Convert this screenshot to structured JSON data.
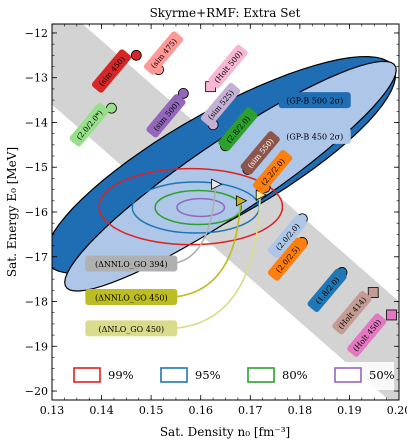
{
  "chart_data": {
    "type": "scatter",
    "title": "Skyrme+RMF: Extra Set",
    "xlabel": "Sat. Density n₀ [fm⁻³]",
    "ylabel": "Sat. Energy E₀ [MeV]",
    "xlim": [
      0.13,
      0.2
    ],
    "ylim": [
      -20.2,
      -11.8
    ],
    "xticks": [
      "0.13",
      "0.14",
      "0.15",
      "0.16",
      "0.17",
      "0.18",
      "0.19",
      "0.20"
    ],
    "yticks": [
      "−12",
      "−13",
      "−14",
      "−15",
      "−16",
      "−17",
      "−18",
      "−19",
      "−20"
    ],
    "grid": false,
    "band_color": "#d3d3d3",
    "band": {
      "x": [
        0.13,
        0.2
      ],
      "lower": [
        -13.6,
        -20.4
      ],
      "upper": [
        -11.2,
        -18.0
      ]
    },
    "regions": [
      {
        "name": "GP-B 500 2σ",
        "label": "(GP-B 500 2σ)",
        "cx": 0.164,
        "cy": -14.95,
        "rx_dir": [
          0.0345,
          2.25
        ],
        "ry_dir": [
          -0.0075,
          0.9
        ],
        "fill": "#1f6eb4",
        "label_x": 0.183,
        "label_y": -13.5
      },
      {
        "name": "GP-B 450 2σ",
        "label": "(GP-B 450 2σ)",
        "cx": 0.166,
        "cy": -15.2,
        "rx_dir": [
          0.033,
          2.5
        ],
        "ry_dir": [
          -0.0054,
          0.58
        ],
        "fill": "#aec7e8",
        "label_x": 0.183,
        "label_y": -14.3
      }
    ],
    "ellipses": [
      {
        "level": "99%",
        "cx": 0.158,
        "cy": -15.88,
        "rx": 0.0185,
        "ry": 0.85,
        "color": "#e02020"
      },
      {
        "level": "95%",
        "cx": 0.159,
        "cy": -15.9,
        "rx": 0.0128,
        "ry": 0.57,
        "color": "#1f77b4"
      },
      {
        "level": "80%",
        "cx": 0.1595,
        "cy": -15.9,
        "rx": 0.0087,
        "ry": 0.38,
        "color": "#2ca02c"
      },
      {
        "level": "50%",
        "cx": 0.16,
        "cy": -15.9,
        "rx": 0.0048,
        "ry": 0.2,
        "color": "#9467bd"
      }
    ],
    "triangles": [
      {
        "label": "(ΔNNLO_GO 394)",
        "x": 0.163,
        "y": -15.38,
        "fill": "#e8e8e8",
        "label_color": "#b0b0b0",
        "text_color": "#000000",
        "label_x": 0.146,
        "label_y": -17.15
      },
      {
        "label": "(ΔNNLO_GO 450)",
        "x": 0.168,
        "y": -15.75,
        "fill": "#c4b82a",
        "label_color": "#bcbd22",
        "text_color": "#000000",
        "label_x": 0.146,
        "label_y": -17.9
      },
      {
        "label": "(ΔNLO_GO 450)",
        "x": 0.172,
        "y": -15.62,
        "fill": "#f2efa8",
        "label_color": "#dbdb8d",
        "text_color": "#000000",
        "label_x": 0.146,
        "label_y": -18.6
      }
    ],
    "points": [
      {
        "label": "(sim 450)",
        "x": 0.147,
        "y": -12.5,
        "marker": "circle",
        "color": "#d62728",
        "text_color": "#000000",
        "label_x": 0.142,
        "label_y": -12.85,
        "angle": -50
      },
      {
        "label": "(sim 475)",
        "x": 0.1515,
        "y": -12.82,
        "marker": "circle",
        "color": "#ff9896",
        "text_color": "#000000",
        "label_x": 0.1525,
        "label_y": -12.45,
        "angle": -50
      },
      {
        "label": "(Holt 500)",
        "x": 0.162,
        "y": -13.2,
        "marker": "square",
        "color": "#f7b6d2",
        "text_color": "#000000",
        "label_x": 0.1655,
        "label_y": -12.75,
        "angle": -50
      },
      {
        "label": "(sim 500)",
        "x": 0.1565,
        "y": -13.35,
        "marker": "circle",
        "color": "#9467bd",
        "text_color": "#000000",
        "label_x": 0.153,
        "label_y": -13.85,
        "angle": -50
      },
      {
        "label": "(sim 525)",
        "x": 0.1625,
        "y": -14.05,
        "marker": "circle",
        "color": "#c5b0d5",
        "text_color": "#000000",
        "label_x": 0.164,
        "label_y": -13.6,
        "angle": -50
      },
      {
        "label": "(2.0/2.0*)",
        "x": 0.142,
        "y": -13.68,
        "marker": "circle",
        "color": "#98df8a",
        "text_color": "#000000",
        "label_x": 0.1375,
        "label_y": -14.05,
        "angle": -50
      },
      {
        "label": "(2.8/2.0)",
        "x": 0.165,
        "y": -14.52,
        "marker": "circle",
        "color": "#2ca02c",
        "text_color": "#000000",
        "label_x": 0.1675,
        "label_y": -14.15,
        "angle": -50
      },
      {
        "label": "(sim 550)",
        "x": 0.1695,
        "y": -15.05,
        "marker": "circle",
        "color": "#8c564b",
        "text_color": "#ffffff",
        "label_x": 0.172,
        "label_y": -14.68,
        "angle": -50
      },
      {
        "label": "(2.2/2.0)",
        "x": 0.173,
        "y": -15.45,
        "marker": "circle",
        "color": "#ff7f0e",
        "text_color": "#000000",
        "label_x": 0.1745,
        "label_y": -15.1,
        "angle": -50
      },
      {
        "label": "(2.0/2.0)",
        "x": 0.1805,
        "y": -16.15,
        "marker": "circle",
        "color": "#aec7e8",
        "text_color": "#000000",
        "label_x": 0.1775,
        "label_y": -16.55,
        "angle": -50
      },
      {
        "label": "(2.0/2.5)",
        "x": 0.1805,
        "y": -16.68,
        "marker": "circle",
        "color": "#ff7f0e",
        "text_color": "#000000",
        "label_x": 0.1775,
        "label_y": -17.05,
        "angle": -50
      },
      {
        "label": "(1.8/2.0)",
        "x": 0.1885,
        "y": -17.35,
        "marker": "circle",
        "color": "#1f77b4",
        "text_color": "#000000",
        "label_x": 0.1855,
        "label_y": -17.75,
        "angle": -50
      },
      {
        "label": "(Holt 414)",
        "x": 0.1948,
        "y": -17.8,
        "marker": "square",
        "color": "#c49c94",
        "text_color": "#000000",
        "label_x": 0.1905,
        "label_y": -18.25,
        "angle": -50
      },
      {
        "label": "(Holt 450)",
        "x": 0.1985,
        "y": -18.3,
        "marker": "square",
        "color": "#e377c2",
        "text_color": "#000000",
        "label_x": 0.1935,
        "label_y": -18.75,
        "angle": -50
      }
    ],
    "legend": {
      "placement": "bottom",
      "entries": [
        {
          "label": "99%",
          "color": "#e02020"
        },
        {
          "label": "95%",
          "color": "#1f77b4"
        },
        {
          "label": "80%",
          "color": "#2ca02c"
        },
        {
          "label": "50%",
          "color": "#9467bd"
        }
      ]
    }
  }
}
